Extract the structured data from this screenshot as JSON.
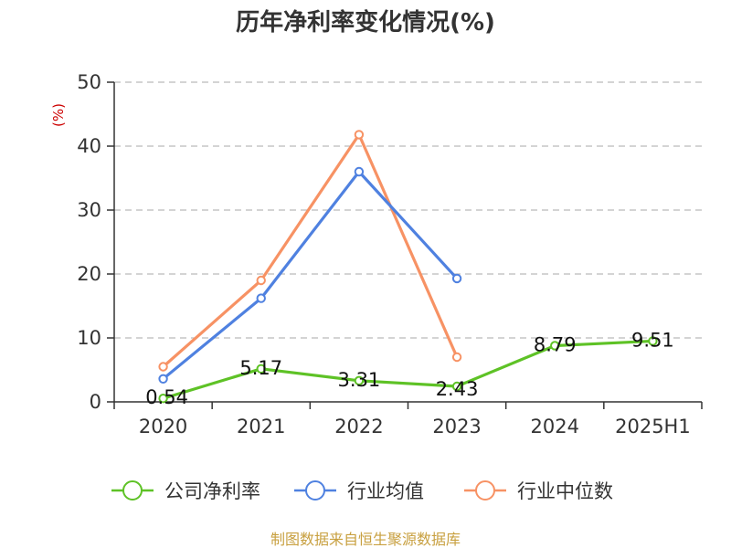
{
  "chart_data": {
    "type": "line",
    "title": "历年净利率变化情况(%)",
    "ylabel": "(%)",
    "categories": [
      "2020",
      "2021",
      "2022",
      "2023",
      "2024",
      "2025H1"
    ],
    "ylim": [
      0,
      50
    ],
    "yticks": [
      0,
      10,
      20,
      30,
      40,
      50
    ],
    "grid": true,
    "legend_position": "bottom",
    "series": [
      {
        "name": "公司净利率",
        "color": "#5ec226",
        "values": [
          0.54,
          5.17,
          3.31,
          2.43,
          8.79,
          9.51
        ],
        "labels": [
          "0.54",
          "5.17",
          "3.31",
          "2.43",
          "8.79",
          "9.51"
        ]
      },
      {
        "name": "行业均值",
        "color": "#4f81e0",
        "values": [
          3.6,
          16.2,
          36.0,
          19.3,
          null,
          null
        ]
      },
      {
        "name": "行业中位数",
        "color": "#f79264",
        "values": [
          5.5,
          19.0,
          41.8,
          7.0,
          null,
          null
        ]
      }
    ]
  },
  "footer": {
    "source": "制图数据来自恒生聚源数据库",
    "source_color": "#c8a040"
  },
  "colors": {
    "axis": "#333333",
    "grid": "#bbbbbb",
    "unit_label": "#cc0000"
  }
}
